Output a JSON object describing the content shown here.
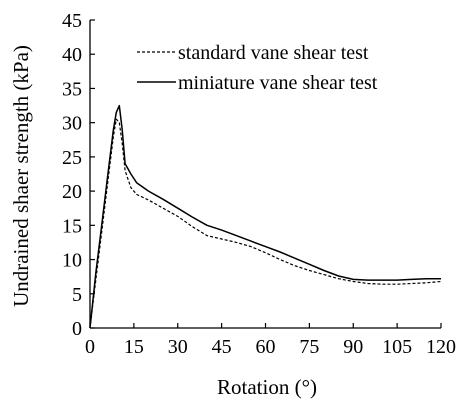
{
  "chart_data": {
    "type": "line",
    "title": "",
    "xlabel": "Rotation (°)",
    "ylabel": "Undrained shaer strength (kPa)",
    "xlim": [
      0,
      120
    ],
    "ylim": [
      0,
      45
    ],
    "xticks": [
      0,
      15,
      30,
      45,
      60,
      75,
      90,
      105,
      120
    ],
    "yticks": [
      0,
      5,
      10,
      15,
      20,
      25,
      30,
      35,
      40,
      45
    ],
    "grid": false,
    "legend_position": "top-right",
    "series": [
      {
        "name": "standard vane shear test",
        "style": "dashed",
        "color": "#000000",
        "x": [
          0,
          2,
          4,
          6,
          8,
          9,
          10,
          11,
          12,
          14,
          16,
          20,
          25,
          30,
          35,
          40,
          45,
          50,
          55,
          60,
          65,
          70,
          75,
          80,
          85,
          90,
          95,
          100,
          105,
          110,
          115,
          120
        ],
        "y": [
          0,
          7,
          14,
          21,
          28,
          30.5,
          30,
          27,
          23,
          20.5,
          19.5,
          18.7,
          17.5,
          16.3,
          14.8,
          13.5,
          13.0,
          12.5,
          11.9,
          11.0,
          10.0,
          9.1,
          8.4,
          7.8,
          7.2,
          6.8,
          6.5,
          6.4,
          6.4,
          6.5,
          6.6,
          6.8
        ]
      },
      {
        "name": "miniature vane shear test",
        "style": "solid",
        "color": "#000000",
        "x": [
          0,
          2,
          4,
          6,
          8,
          9,
          10,
          11,
          12,
          14,
          16,
          20,
          25,
          30,
          35,
          40,
          45,
          50,
          55,
          60,
          65,
          70,
          75,
          80,
          85,
          90,
          95,
          100,
          105,
          110,
          115,
          120
        ],
        "y": [
          0,
          8,
          15,
          22,
          29,
          31.5,
          32.5,
          29,
          24,
          22.5,
          21.2,
          20.0,
          18.8,
          17.5,
          16.2,
          15.0,
          14.3,
          13.5,
          12.7,
          11.9,
          11.1,
          10.2,
          9.3,
          8.4,
          7.6,
          7.1,
          7.0,
          7.0,
          7.0,
          7.1,
          7.2,
          7.2
        ]
      }
    ]
  }
}
